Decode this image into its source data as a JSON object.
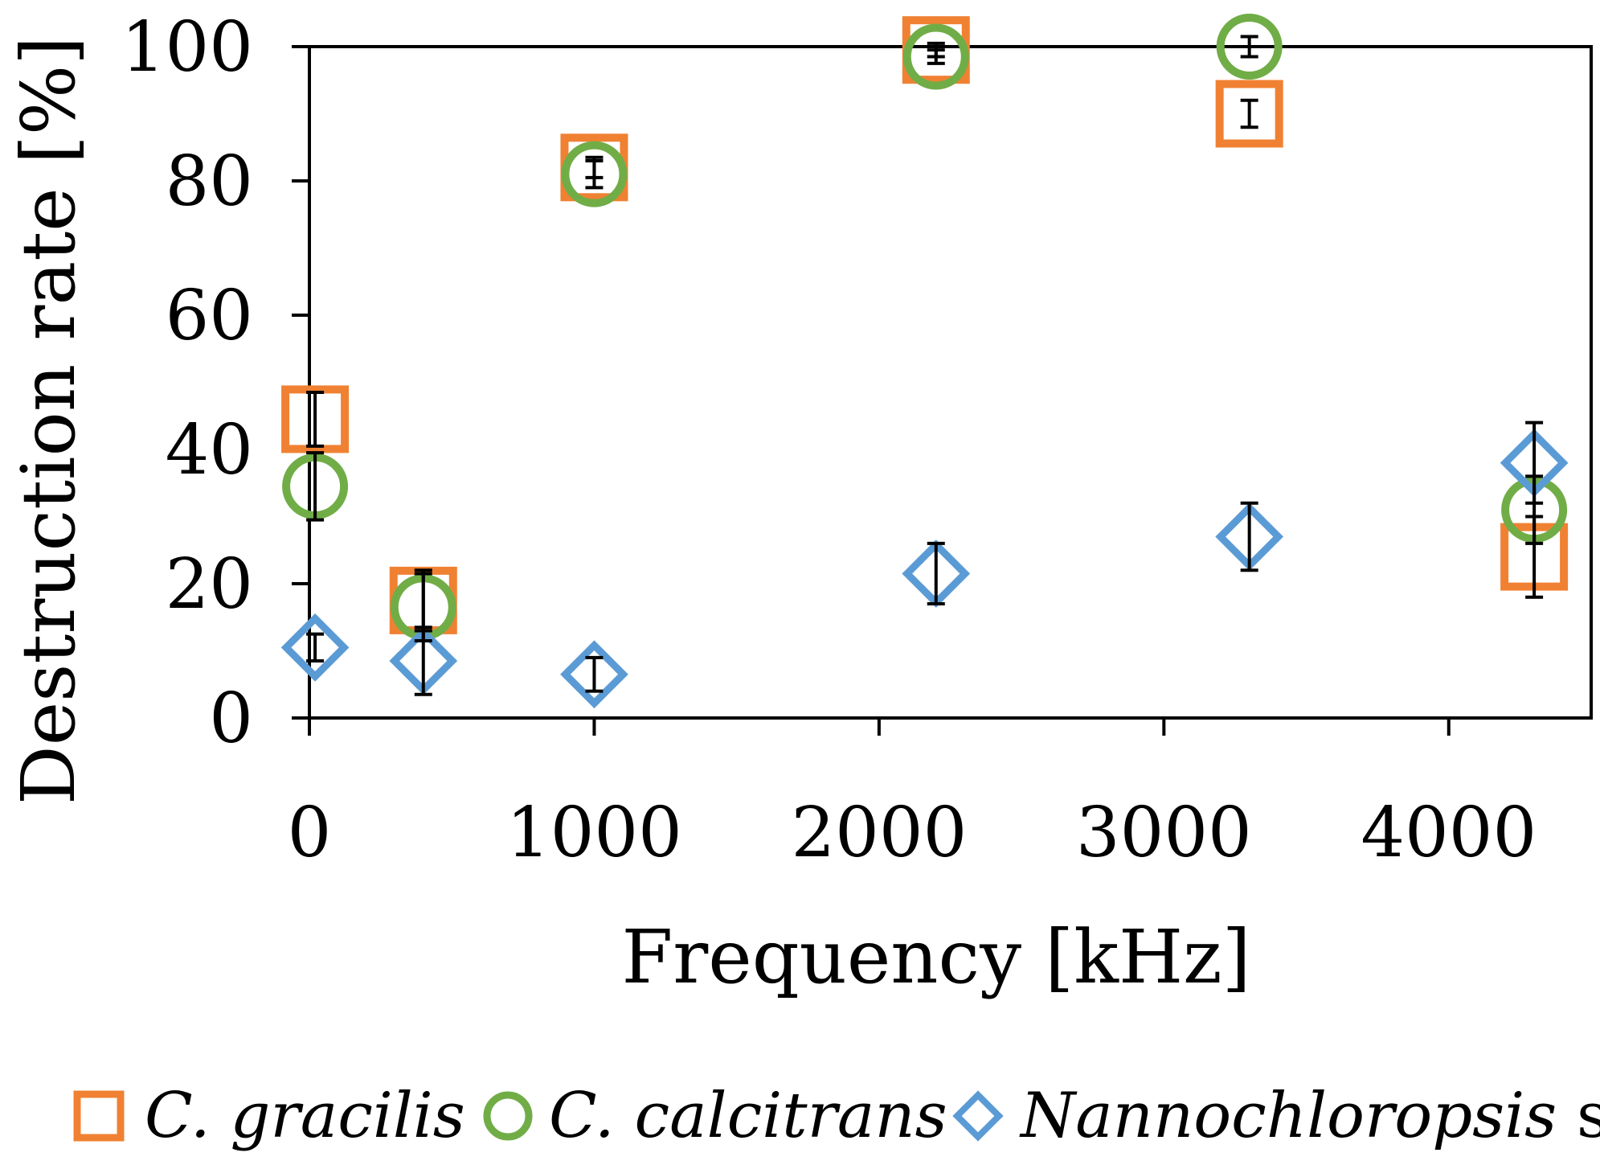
{
  "chart_data": {
    "type": "scatter",
    "xlabel": "Frequency [kHz]",
    "ylabel": "Destruction rate [%]",
    "xlim": [
      0,
      4500
    ],
    "ylim": [
      0,
      100
    ],
    "x_ticks": [
      0,
      1000,
      2000,
      3000,
      4000
    ],
    "y_ticks": [
      0,
      20,
      40,
      60,
      80,
      100
    ],
    "grid": false,
    "legend_position": "bottom",
    "series": [
      {
        "name_italic": "C. gracilis",
        "name_suffix": "",
        "marker": "square",
        "color": "#F08132",
        "x": [
          20,
          400,
          1000,
          2200,
          3300,
          4300
        ],
        "y": [
          44.5,
          17.5,
          82,
          99.5,
          90,
          24
        ],
        "err": [
          4,
          4.5,
          1.5,
          1,
          2,
          6
        ]
      },
      {
        "name_italic": "C. calcitrans",
        "name_suffix": "",
        "marker": "circle",
        "color": "#71AD47",
        "x": [
          20,
          400,
          1000,
          2200,
          3300,
          4300
        ],
        "y": [
          34.5,
          16.5,
          81,
          98.5,
          100,
          31
        ],
        "err": [
          5,
          5,
          2,
          1,
          1.5,
          5
        ]
      },
      {
        "name_italic": "Nannochloropsis",
        "name_suffix": " sp.",
        "marker": "diamond",
        "color": "#5B9BD5",
        "x": [
          20,
          400,
          1000,
          2200,
          3300,
          4300
        ],
        "y": [
          10.5,
          8.5,
          6.5,
          21.5,
          27,
          38
        ],
        "err": [
          2,
          5,
          2.5,
          4.5,
          5,
          6
        ]
      }
    ]
  }
}
